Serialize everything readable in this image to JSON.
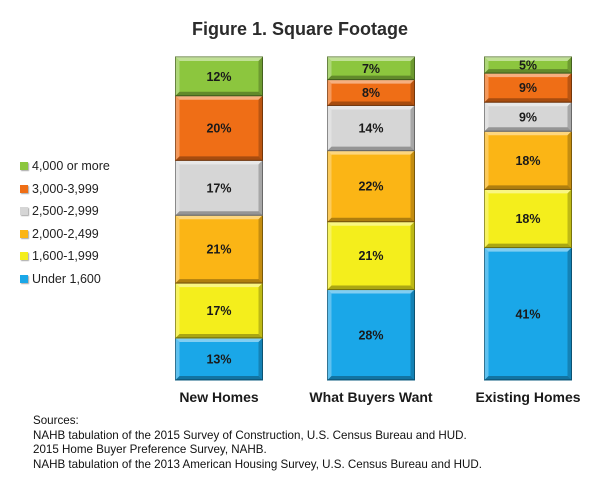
{
  "chart_data": {
    "type": "bar",
    "stacked": true,
    "percent": true,
    "title": "Figure 1.  Square Footage",
    "categories": [
      "New Homes",
      "What Buyers Want",
      "Existing Homes"
    ],
    "series": [
      {
        "name": "Under 1,600",
        "color": "#1aa7e8",
        "values": [
          13,
          28,
          41
        ],
        "labels": [
          "13%",
          "28%",
          "41%"
        ]
      },
      {
        "name": "1,600-1,999",
        "color": "#f4ee1c",
        "values": [
          17,
          21,
          18
        ],
        "labels": [
          "17%",
          "21%",
          "18%"
        ]
      },
      {
        "name": "2,000-2,499",
        "color": "#fbb515",
        "values": [
          21,
          22,
          18
        ],
        "labels": [
          "21%",
          "22%",
          "18%"
        ]
      },
      {
        "name": "2,500-2,999",
        "color": "#d6d6d6",
        "values": [
          17,
          14,
          9
        ],
        "labels": [
          "17%",
          "14%",
          "9%"
        ]
      },
      {
        "name": "3,000-3,999",
        "color": "#ef6e16",
        "values": [
          20,
          8,
          9
        ],
        "labels": [
          "20%",
          "8%",
          "9%"
        ]
      },
      {
        "name": "4,000 or more",
        "color": "#8cc63e",
        "values": [
          12,
          7,
          5
        ],
        "labels": [
          "12%",
          "7%",
          "5%"
        ]
      }
    ],
    "legend_position": "left",
    "grid": false
  },
  "sources": {
    "heading": "Sources:",
    "lines": [
      "NAHB tabulation of the 2015 Survey of Construction, U.S. Census Bureau and HUD.",
      "2015 Home Buyer Preference  Survey, NAHB.",
      "NAHB tabulation of the 2013 American Housing Survey, U.S. Census Bureau and HUD."
    ]
  }
}
